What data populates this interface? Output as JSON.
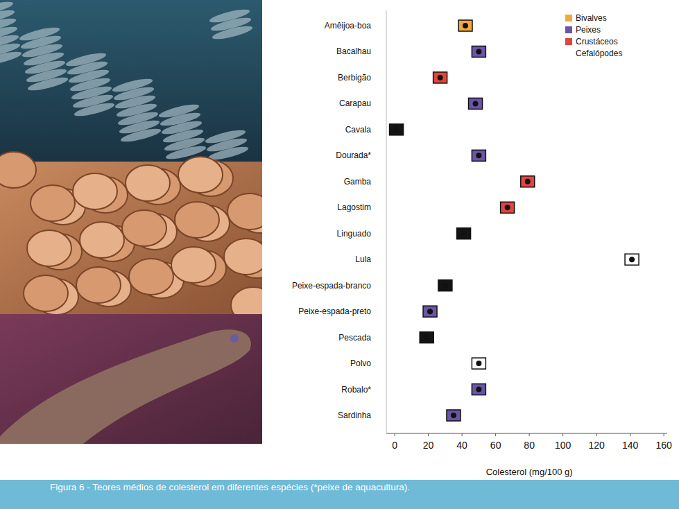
{
  "chart_data": {
    "type": "dot",
    "orientation": "horizontal",
    "title": "Figura 6 - Teores médios de colesterol em diferentes espécies (*peixe de aquacultura).",
    "x_label": "Colesterol (mg/100 g)",
    "categories": [
      "Amêijoa-boa",
      "Bacalhau",
      "Berbigão",
      "Carapau",
      "Cavala",
      "Dourada*",
      "Gamba",
      "Lagostim",
      "Linguado",
      "Lula",
      "Peixe-espada-branco",
      "Peixe-espada-preto",
      "Pescada",
      "Polvo",
      "Robalo*",
      "Sardinha"
    ],
    "series": [
      {
        "name": "Bivalves",
        "color": "#f2a93b",
        "values": [
          42,
          null,
          null,
          null,
          null,
          null,
          null,
          null,
          null,
          null,
          null,
          null,
          null,
          null,
          null,
          null
        ]
      },
      {
        "name": "Peixes",
        "color": "#6b55a6",
        "values": [
          null,
          50,
          null,
          48,
          null,
          50,
          null,
          null,
          null,
          null,
          null,
          21,
          null,
          null,
          50,
          35
        ]
      },
      {
        "name": "Crustáceos",
        "color": "#e2453e",
        "values": [
          null,
          null,
          27,
          null,
          null,
          null,
          79,
          67,
          null,
          null,
          null,
          null,
          null,
          null,
          null,
          null
        ]
      },
      {
        "name": "Cefalópodes",
        "color": "#ffffff",
        "values": [
          null,
          null,
          null,
          null,
          null,
          null,
          null,
          null,
          null,
          141,
          null,
          null,
          null,
          50,
          null,
          null
        ]
      },
      {
        "color": "#141414",
        "values": [
          null,
          null,
          null,
          null,
          1,
          null,
          null,
          null,
          41,
          null,
          30,
          null,
          19,
          null,
          null,
          null
        ]
      }
    ],
    "xlim": [
      -5,
      162
    ],
    "xticks": [
      0,
      20,
      40,
      60,
      80,
      100,
      120,
      140,
      160
    ],
    "marker": "box",
    "legend": "top-right",
    "grid": false
  }
}
